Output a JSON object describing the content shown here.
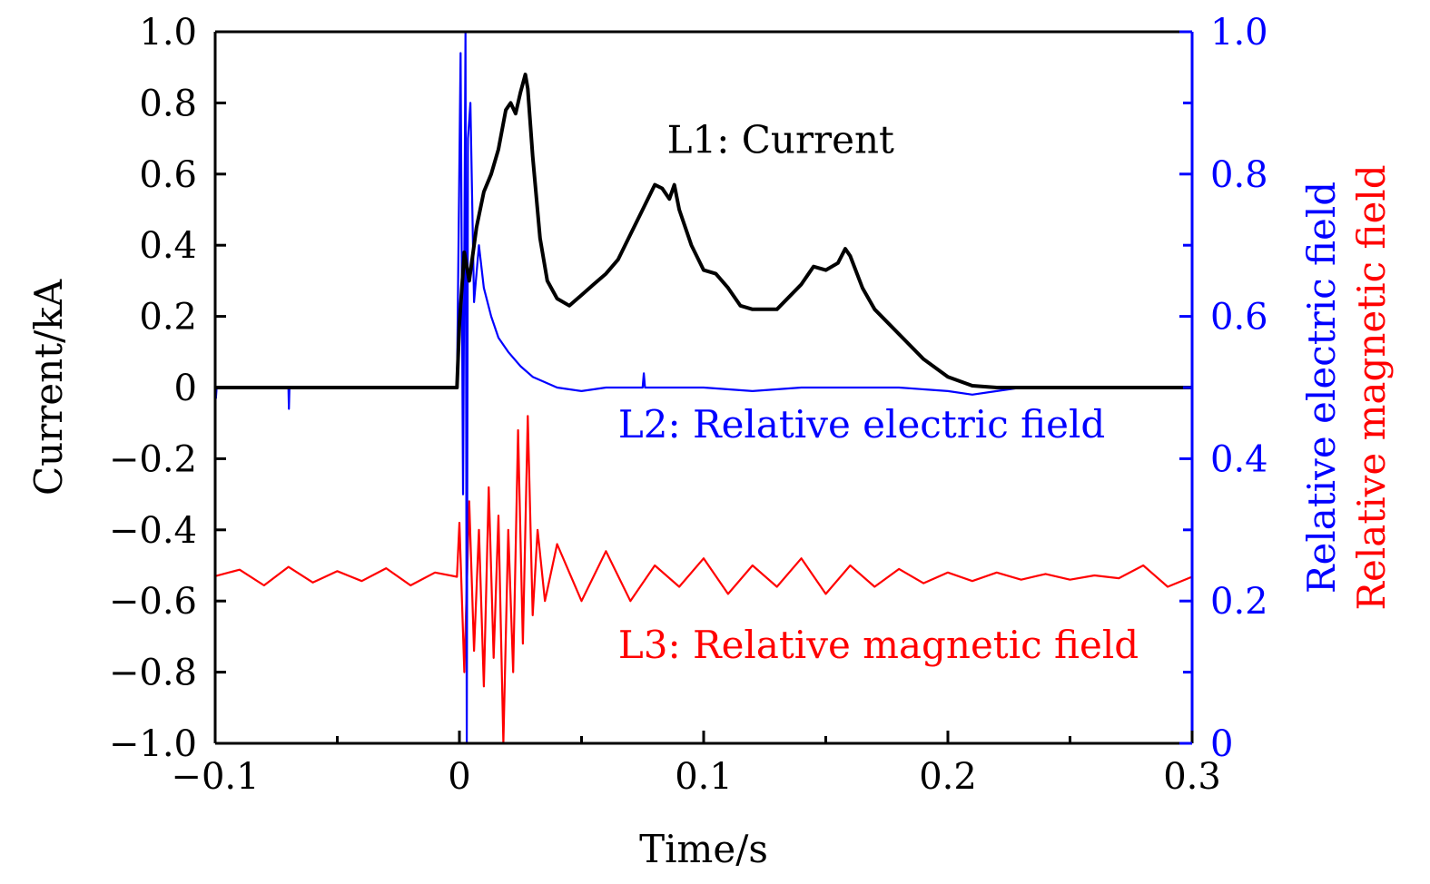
{
  "chart_data": {
    "type": "line",
    "title": "",
    "xlabel": "Time/s",
    "ylabel_left": "Current/kA",
    "ylabel_right": [
      "Relative electric field",
      "Relative magnetic field"
    ],
    "xlim": [
      -0.1,
      0.3
    ],
    "ylim_left": [
      -1.0,
      1.0
    ],
    "ylim_right": [
      0,
      1.0
    ],
    "x_ticks": [
      {
        "value": -0.1,
        "label": "−0.1"
      },
      {
        "value": 0,
        "label": "0"
      },
      {
        "value": 0.1,
        "label": "0.1"
      },
      {
        "value": 0.2,
        "label": "0.2"
      },
      {
        "value": 0.3,
        "label": "0.3"
      }
    ],
    "y_left_ticks": [
      {
        "value": 1.0,
        "label": "1.0"
      },
      {
        "value": 0.8,
        "label": "0.8"
      },
      {
        "value": 0.6,
        "label": "0.6"
      },
      {
        "value": 0.4,
        "label": "0.4"
      },
      {
        "value": 0.2,
        "label": "0.2"
      },
      {
        "value": 0,
        "label": "0"
      },
      {
        "value": -0.2,
        "label": "−0.2"
      },
      {
        "value": -0.4,
        "label": "−0.4"
      },
      {
        "value": -0.6,
        "label": "−0.6"
      },
      {
        "value": -0.8,
        "label": "−0.8"
      },
      {
        "value": -1.0,
        "label": "−1.0"
      }
    ],
    "y_right_ticks": [
      {
        "value": 1.0,
        "label": "1.0"
      },
      {
        "value": 0.8,
        "label": "0.8"
      },
      {
        "value": 0.6,
        "label": "0.6"
      },
      {
        "value": 0.4,
        "label": "0.4"
      },
      {
        "value": 0.2,
        "label": "0.2"
      },
      {
        "value": 0,
        "label": "0"
      }
    ],
    "colors": {
      "axis": "#000000",
      "current": "#000000",
      "efield": "#0000ff",
      "bfield": "#ff0000"
    },
    "annotations": [
      {
        "text": "L1: Current",
        "color": "#000000",
        "anchor": [
          0.085,
          0.66
        ]
      },
      {
        "text": "L2: Relative electric field",
        "color": "#0000ff",
        "anchor": [
          0.065,
          -0.14
        ]
      },
      {
        "text": "L3: Relative magnetic field",
        "color": "#ff0000",
        "anchor": [
          0.065,
          -0.76
        ]
      }
    ],
    "series": [
      {
        "name": "L1: Current",
        "axis": "left",
        "color": "#000000",
        "x": [
          -0.1,
          -0.02,
          -0.001,
          0.0,
          0.002,
          0.004,
          0.007,
          0.01,
          0.013,
          0.016,
          0.019,
          0.021,
          0.023,
          0.025,
          0.027,
          0.028,
          0.03,
          0.033,
          0.036,
          0.04,
          0.045,
          0.05,
          0.055,
          0.06,
          0.065,
          0.07,
          0.075,
          0.08,
          0.083,
          0.086,
          0.088,
          0.09,
          0.095,
          0.1,
          0.105,
          0.11,
          0.115,
          0.12,
          0.13,
          0.14,
          0.145,
          0.15,
          0.155,
          0.158,
          0.16,
          0.165,
          0.17,
          0.18,
          0.19,
          0.2,
          0.21,
          0.22,
          0.23,
          0.3
        ],
        "y": [
          0.0,
          0.0,
          0.0,
          0.18,
          0.38,
          0.3,
          0.45,
          0.55,
          0.6,
          0.67,
          0.78,
          0.8,
          0.77,
          0.83,
          0.88,
          0.84,
          0.65,
          0.42,
          0.3,
          0.25,
          0.23,
          0.26,
          0.29,
          0.32,
          0.36,
          0.43,
          0.5,
          0.57,
          0.56,
          0.53,
          0.57,
          0.5,
          0.4,
          0.33,
          0.32,
          0.28,
          0.23,
          0.22,
          0.22,
          0.29,
          0.34,
          0.33,
          0.35,
          0.39,
          0.37,
          0.28,
          0.22,
          0.15,
          0.08,
          0.03,
          0.005,
          0.0,
          0.0,
          0.0
        ]
      },
      {
        "name": "L2: Relative electric field",
        "axis": "right",
        "color": "#0000ff",
        "x": [
          -0.1,
          -0.0997,
          -0.0994,
          -0.07,
          -0.0698,
          -0.0696,
          -0.001,
          0.0005,
          0.0015,
          0.0025,
          0.003,
          0.0035,
          0.0045,
          0.006,
          0.008,
          0.01,
          0.013,
          0.016,
          0.02,
          0.025,
          0.03,
          0.04,
          0.05,
          0.06,
          0.075,
          0.0755,
          0.076,
          0.09,
          0.1,
          0.12,
          0.14,
          0.16,
          0.18,
          0.2,
          0.21,
          0.22,
          0.23,
          0.3
        ],
        "y": [
          0.5,
          0.485,
          0.5,
          0.5,
          0.47,
          0.5,
          0.5,
          0.97,
          0.35,
          1.0,
          0.0,
          0.85,
          0.9,
          0.62,
          0.7,
          0.64,
          0.6,
          0.57,
          0.55,
          0.53,
          0.515,
          0.5,
          0.495,
          0.5,
          0.5,
          0.52,
          0.5,
          0.5,
          0.5,
          0.495,
          0.5,
          0.5,
          0.5,
          0.495,
          0.49,
          0.495,
          0.5,
          0.5
        ]
      },
      {
        "name": "L3: Relative magnetic field",
        "axis": "right",
        "color": "#ff0000",
        "x": [
          -0.1,
          -0.09,
          -0.08,
          -0.07,
          -0.06,
          -0.05,
          -0.04,
          -0.03,
          -0.02,
          -0.01,
          -0.001,
          0.0,
          0.002,
          0.004,
          0.006,
          0.008,
          0.01,
          0.012,
          0.014,
          0.016,
          0.018,
          0.02,
          0.022,
          0.024,
          0.026,
          0.028,
          0.03,
          0.032,
          0.035,
          0.04,
          0.05,
          0.06,
          0.07,
          0.08,
          0.09,
          0.1,
          0.11,
          0.12,
          0.13,
          0.14,
          0.15,
          0.16,
          0.17,
          0.18,
          0.19,
          0.2,
          0.21,
          0.22,
          0.23,
          0.24,
          0.25,
          0.26,
          0.27,
          0.28,
          0.29,
          0.3
        ],
        "y": [
          0.235,
          0.244,
          0.222,
          0.248,
          0.226,
          0.242,
          0.228,
          0.246,
          0.222,
          0.24,
          0.234,
          0.31,
          0.1,
          0.34,
          0.13,
          0.3,
          0.08,
          0.36,
          0.12,
          0.32,
          0.0,
          0.3,
          0.1,
          0.44,
          0.14,
          0.46,
          0.18,
          0.3,
          0.2,
          0.28,
          0.2,
          0.27,
          0.2,
          0.25,
          0.22,
          0.26,
          0.21,
          0.25,
          0.22,
          0.26,
          0.21,
          0.25,
          0.22,
          0.245,
          0.225,
          0.24,
          0.228,
          0.24,
          0.23,
          0.238,
          0.23,
          0.236,
          0.232,
          0.25,
          0.22,
          0.234
        ]
      }
    ]
  }
}
